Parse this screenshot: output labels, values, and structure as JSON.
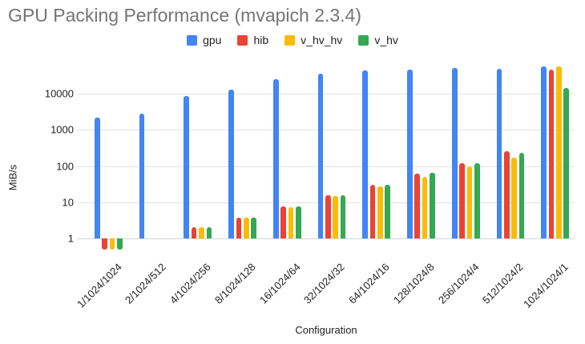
{
  "chart_data": {
    "type": "bar",
    "scale": "log",
    "title": "GPU Packing Performance (mvapich 2.3.4)",
    "xlabel": "Configuration",
    "ylabel": "MiB/s",
    "ylim": [
      0.5,
      62000
    ],
    "yticks": [
      1,
      10,
      100,
      1000,
      10000
    ],
    "grid": "horizontal",
    "legend_position": "top",
    "categories": [
      "1/1024/1024",
      "2/1024/512",
      "4/1024/256",
      "8/1024/128",
      "16/1024/64",
      "32/1024/32",
      "64/1024/16",
      "128/1024/8",
      "256/1024/4",
      "512/1024/2",
      "1024/1024/1"
    ],
    "series": [
      {
        "name": "gpu",
        "color": "#4285F4",
        "values": [
          2200,
          2800,
          8500,
          13000,
          25000,
          35000,
          44000,
          46000,
          52000,
          48000,
          57000
        ]
      },
      {
        "name": "hib",
        "color": "#EA4335",
        "values": [
          0.5,
          null,
          2,
          3.7,
          7.5,
          16,
          30,
          62,
          120,
          250,
          46000
        ]
      },
      {
        "name": "v_hv_hv",
        "color": "#FBBC04",
        "values": [
          0.5,
          null,
          2,
          3.7,
          7.3,
          14.5,
          28,
          50,
          100,
          170,
          57000
        ]
      },
      {
        "name": "v_hv",
        "color": "#34A853",
        "values": [
          0.5,
          null,
          2,
          3.8,
          7.6,
          16,
          31,
          64,
          118,
          230,
          14500
        ]
      }
    ]
  }
}
